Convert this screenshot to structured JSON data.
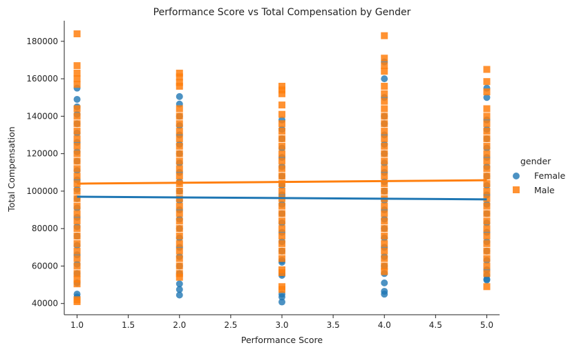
{
  "chart_data": {
    "type": "scatter",
    "title": "Performance Score vs Total Compensation by Gender",
    "xlabel": "Performance Score",
    "ylabel": "Total Compensation",
    "xlim": [
      0.875,
      5.125
    ],
    "ylim": [
      34000,
      191000
    ],
    "x_ticks": [
      1.0,
      1.5,
      2.0,
      2.5,
      3.0,
      3.5,
      4.0,
      4.5,
      5.0
    ],
    "x_tick_labels": [
      "1.0",
      "1.5",
      "2.0",
      "2.5",
      "3.0",
      "3.5",
      "4.0",
      "4.5",
      "5.0"
    ],
    "y_ticks": [
      40000,
      60000,
      80000,
      100000,
      120000,
      140000,
      160000,
      180000
    ],
    "y_tick_labels": [
      "40000",
      "60000",
      "80000",
      "100000",
      "120000",
      "140000",
      "160000",
      "180000"
    ],
    "grid": false,
    "legend": {
      "title": "gender",
      "position": "right",
      "entries": [
        "Female",
        "Male"
      ]
    },
    "series": [
      {
        "name": "Female",
        "color": "#1f77b4",
        "marker": "circle",
        "trend": {
          "x": [
            1.0,
            5.0
          ],
          "y": [
            97000,
            95600
          ]
        },
        "points": [
          {
            "x": 1,
            "y": 155000
          },
          {
            "x": 1,
            "y": 149000
          },
          {
            "x": 1,
            "y": 145000
          },
          {
            "x": 1,
            "y": 141000
          },
          {
            "x": 1,
            "y": 136000
          },
          {
            "x": 1,
            "y": 131000
          },
          {
            "x": 1,
            "y": 126000
          },
          {
            "x": 1,
            "y": 121000
          },
          {
            "x": 1,
            "y": 116000
          },
          {
            "x": 1,
            "y": 111000
          },
          {
            "x": 1,
            "y": 106000
          },
          {
            "x": 1,
            "y": 101000
          },
          {
            "x": 1,
            "y": 96000
          },
          {
            "x": 1,
            "y": 91000
          },
          {
            "x": 1,
            "y": 86000
          },
          {
            "x": 1,
            "y": 81000
          },
          {
            "x": 1,
            "y": 76000
          },
          {
            "x": 1,
            "y": 71000
          },
          {
            "x": 1,
            "y": 66000
          },
          {
            "x": 1,
            "y": 61000
          },
          {
            "x": 1,
            "y": 56000
          },
          {
            "x": 1,
            "y": 51000
          },
          {
            "x": 1,
            "y": 45000
          },
          {
            "x": 1,
            "y": 43500
          },
          {
            "x": 2,
            "y": 150500
          },
          {
            "x": 2,
            "y": 146500
          },
          {
            "x": 2,
            "y": 140000
          },
          {
            "x": 2,
            "y": 135000
          },
          {
            "x": 2,
            "y": 130000
          },
          {
            "x": 2,
            "y": 125000
          },
          {
            "x": 2,
            "y": 120000
          },
          {
            "x": 2,
            "y": 115000
          },
          {
            "x": 2,
            "y": 110000
          },
          {
            "x": 2,
            "y": 105000
          },
          {
            "x": 2,
            "y": 100000
          },
          {
            "x": 2,
            "y": 95000
          },
          {
            "x": 2,
            "y": 90000
          },
          {
            "x": 2,
            "y": 85000
          },
          {
            "x": 2,
            "y": 80000
          },
          {
            "x": 2,
            "y": 75000
          },
          {
            "x": 2,
            "y": 70000
          },
          {
            "x": 2,
            "y": 65000
          },
          {
            "x": 2,
            "y": 60000
          },
          {
            "x": 2,
            "y": 56000
          },
          {
            "x": 2,
            "y": 50500
          },
          {
            "x": 2,
            "y": 47500
          },
          {
            "x": 2,
            "y": 44500
          },
          {
            "x": 3,
            "y": 138000
          },
          {
            "x": 3,
            "y": 133000
          },
          {
            "x": 3,
            "y": 128000
          },
          {
            "x": 3,
            "y": 123000
          },
          {
            "x": 3,
            "y": 118000
          },
          {
            "x": 3,
            "y": 113000
          },
          {
            "x": 3,
            "y": 108000
          },
          {
            "x": 3,
            "y": 103000
          },
          {
            "x": 3,
            "y": 98000
          },
          {
            "x": 3,
            "y": 93000
          },
          {
            "x": 3,
            "y": 88000
          },
          {
            "x": 3,
            "y": 83000
          },
          {
            "x": 3,
            "y": 78000
          },
          {
            "x": 3,
            "y": 73000
          },
          {
            "x": 3,
            "y": 68000
          },
          {
            "x": 3,
            "y": 63000
          },
          {
            "x": 3,
            "y": 62000
          },
          {
            "x": 3,
            "y": 56000
          },
          {
            "x": 3,
            "y": 55000
          },
          {
            "x": 3,
            "y": 45000
          },
          {
            "x": 3,
            "y": 43500
          },
          {
            "x": 3,
            "y": 40800
          },
          {
            "x": 4,
            "y": 169000
          },
          {
            "x": 4,
            "y": 160000
          },
          {
            "x": 4,
            "y": 150000
          },
          {
            "x": 4,
            "y": 140000
          },
          {
            "x": 4,
            "y": 136000
          },
          {
            "x": 4,
            "y": 130000
          },
          {
            "x": 4,
            "y": 125000
          },
          {
            "x": 4,
            "y": 120000
          },
          {
            "x": 4,
            "y": 115000
          },
          {
            "x": 4,
            "y": 110000
          },
          {
            "x": 4,
            "y": 105000
          },
          {
            "x": 4,
            "y": 100000
          },
          {
            "x": 4,
            "y": 95000
          },
          {
            "x": 4,
            "y": 90000
          },
          {
            "x": 4,
            "y": 85000
          },
          {
            "x": 4,
            "y": 80000
          },
          {
            "x": 4,
            "y": 75000
          },
          {
            "x": 4,
            "y": 70000
          },
          {
            "x": 4,
            "y": 65000
          },
          {
            "x": 4,
            "y": 60000
          },
          {
            "x": 4,
            "y": 56000
          },
          {
            "x": 4,
            "y": 51000
          },
          {
            "x": 4,
            "y": 46500
          },
          {
            "x": 4,
            "y": 45000
          },
          {
            "x": 5,
            "y": 155000
          },
          {
            "x": 5,
            "y": 150000
          },
          {
            "x": 5,
            "y": 138000
          },
          {
            "x": 5,
            "y": 133000
          },
          {
            "x": 5,
            "y": 128000
          },
          {
            "x": 5,
            "y": 123000
          },
          {
            "x": 5,
            "y": 118000
          },
          {
            "x": 5,
            "y": 113000
          },
          {
            "x": 5,
            "y": 108000
          },
          {
            "x": 5,
            "y": 103000
          },
          {
            "x": 5,
            "y": 98000
          },
          {
            "x": 5,
            "y": 93000
          },
          {
            "x": 5,
            "y": 88000
          },
          {
            "x": 5,
            "y": 83000
          },
          {
            "x": 5,
            "y": 78000
          },
          {
            "x": 5,
            "y": 73000
          },
          {
            "x": 5,
            "y": 68000
          },
          {
            "x": 5,
            "y": 63000
          },
          {
            "x": 5,
            "y": 58000
          },
          {
            "x": 5,
            "y": 55000
          },
          {
            "x": 5,
            "y": 53000
          },
          {
            "x": 5,
            "y": 52500
          }
        ]
      },
      {
        "name": "Male",
        "color": "#ff7f0e",
        "marker": "square",
        "trend": {
          "x": [
            1.0,
            5.0
          ],
          "y": [
            104000,
            105800
          ]
        },
        "points": [
          {
            "x": 1,
            "y": 184000
          },
          {
            "x": 1,
            "y": 167000
          },
          {
            "x": 1,
            "y": 163000
          },
          {
            "x": 1,
            "y": 160000
          },
          {
            "x": 1,
            "y": 157000
          },
          {
            "x": 1,
            "y": 144000
          },
          {
            "x": 1,
            "y": 140000
          },
          {
            "x": 1,
            "y": 136000
          },
          {
            "x": 1,
            "y": 132000
          },
          {
            "x": 1,
            "y": 128000
          },
          {
            "x": 1,
            "y": 124000
          },
          {
            "x": 1,
            "y": 120000
          },
          {
            "x": 1,
            "y": 116000
          },
          {
            "x": 1,
            "y": 112000
          },
          {
            "x": 1,
            "y": 108000
          },
          {
            "x": 1,
            "y": 104000
          },
          {
            "x": 1,
            "y": 100000
          },
          {
            "x": 1,
            "y": 96000
          },
          {
            "x": 1,
            "y": 92000
          },
          {
            "x": 1,
            "y": 88000
          },
          {
            "x": 1,
            "y": 84000
          },
          {
            "x": 1,
            "y": 80000
          },
          {
            "x": 1,
            "y": 76000
          },
          {
            "x": 1,
            "y": 72000
          },
          {
            "x": 1,
            "y": 68000
          },
          {
            "x": 1,
            "y": 64000
          },
          {
            "x": 1,
            "y": 60000
          },
          {
            "x": 1,
            "y": 56000
          },
          {
            "x": 1,
            "y": 53000
          },
          {
            "x": 1,
            "y": 50500
          },
          {
            "x": 1,
            "y": 42000
          },
          {
            "x": 1,
            "y": 41000
          },
          {
            "x": 2,
            "y": 163000
          },
          {
            "x": 2,
            "y": 161000
          },
          {
            "x": 2,
            "y": 158000
          },
          {
            "x": 2,
            "y": 156000
          },
          {
            "x": 2,
            "y": 144000
          },
          {
            "x": 2,
            "y": 140000
          },
          {
            "x": 2,
            "y": 136000
          },
          {
            "x": 2,
            "y": 132000
          },
          {
            "x": 2,
            "y": 128000
          },
          {
            "x": 2,
            "y": 124000
          },
          {
            "x": 2,
            "y": 120000
          },
          {
            "x": 2,
            "y": 116000
          },
          {
            "x": 2,
            "y": 112000
          },
          {
            "x": 2,
            "y": 108000
          },
          {
            "x": 2,
            "y": 104000
          },
          {
            "x": 2,
            "y": 100000
          },
          {
            "x": 2,
            "y": 96000
          },
          {
            "x": 2,
            "y": 92000
          },
          {
            "x": 2,
            "y": 88000
          },
          {
            "x": 2,
            "y": 84000
          },
          {
            "x": 2,
            "y": 80000
          },
          {
            "x": 2,
            "y": 76000
          },
          {
            "x": 2,
            "y": 72000
          },
          {
            "x": 2,
            "y": 68000
          },
          {
            "x": 2,
            "y": 64000
          },
          {
            "x": 2,
            "y": 60000
          },
          {
            "x": 2,
            "y": 56000
          },
          {
            "x": 2,
            "y": 54000
          },
          {
            "x": 3,
            "y": 156000
          },
          {
            "x": 3,
            "y": 154000
          },
          {
            "x": 3,
            "y": 152000
          },
          {
            "x": 3,
            "y": 146000
          },
          {
            "x": 3,
            "y": 141000
          },
          {
            "x": 3,
            "y": 136000
          },
          {
            "x": 3,
            "y": 132000
          },
          {
            "x": 3,
            "y": 128000
          },
          {
            "x": 3,
            "y": 124000
          },
          {
            "x": 3,
            "y": 120000
          },
          {
            "x": 3,
            "y": 116000
          },
          {
            "x": 3,
            "y": 112000
          },
          {
            "x": 3,
            "y": 108000
          },
          {
            "x": 3,
            "y": 104000
          },
          {
            "x": 3,
            "y": 100000
          },
          {
            "x": 3,
            "y": 96000
          },
          {
            "x": 3,
            "y": 92000
          },
          {
            "x": 3,
            "y": 88000
          },
          {
            "x": 3,
            "y": 84000
          },
          {
            "x": 3,
            "y": 80000
          },
          {
            "x": 3,
            "y": 76000
          },
          {
            "x": 3,
            "y": 72000
          },
          {
            "x": 3,
            "y": 68000
          },
          {
            "x": 3,
            "y": 64000
          },
          {
            "x": 3,
            "y": 58000
          },
          {
            "x": 3,
            "y": 56500
          },
          {
            "x": 3,
            "y": 49000
          },
          {
            "x": 3,
            "y": 47500
          },
          {
            "x": 4,
            "y": 183000
          },
          {
            "x": 4,
            "y": 171000
          },
          {
            "x": 4,
            "y": 167000
          },
          {
            "x": 4,
            "y": 164000
          },
          {
            "x": 4,
            "y": 156000
          },
          {
            "x": 4,
            "y": 152000
          },
          {
            "x": 4,
            "y": 148000
          },
          {
            "x": 4,
            "y": 144000
          },
          {
            "x": 4,
            "y": 140000
          },
          {
            "x": 4,
            "y": 136000
          },
          {
            "x": 4,
            "y": 132000
          },
          {
            "x": 4,
            "y": 128000
          },
          {
            "x": 4,
            "y": 124000
          },
          {
            "x": 4,
            "y": 120000
          },
          {
            "x": 4,
            "y": 116000
          },
          {
            "x": 4,
            "y": 112000
          },
          {
            "x": 4,
            "y": 108000
          },
          {
            "x": 4,
            "y": 104000
          },
          {
            "x": 4,
            "y": 100000
          },
          {
            "x": 4,
            "y": 96000
          },
          {
            "x": 4,
            "y": 92000
          },
          {
            "x": 4,
            "y": 88000
          },
          {
            "x": 4,
            "y": 84000
          },
          {
            "x": 4,
            "y": 80000
          },
          {
            "x": 4,
            "y": 76000
          },
          {
            "x": 4,
            "y": 72000
          },
          {
            "x": 4,
            "y": 68000
          },
          {
            "x": 4,
            "y": 64000
          },
          {
            "x": 4,
            "y": 60000
          },
          {
            "x": 4,
            "y": 57000
          },
          {
            "x": 5,
            "y": 165000
          },
          {
            "x": 5,
            "y": 158500
          },
          {
            "x": 5,
            "y": 153000
          },
          {
            "x": 5,
            "y": 144000
          },
          {
            "x": 5,
            "y": 140000
          },
          {
            "x": 5,
            "y": 136000
          },
          {
            "x": 5,
            "y": 132000
          },
          {
            "x": 5,
            "y": 128000
          },
          {
            "x": 5,
            "y": 124000
          },
          {
            "x": 5,
            "y": 120000
          },
          {
            "x": 5,
            "y": 116000
          },
          {
            "x": 5,
            "y": 112000
          },
          {
            "x": 5,
            "y": 108000
          },
          {
            "x": 5,
            "y": 104000
          },
          {
            "x": 5,
            "y": 100000
          },
          {
            "x": 5,
            "y": 96000
          },
          {
            "x": 5,
            "y": 92000
          },
          {
            "x": 5,
            "y": 88000
          },
          {
            "x": 5,
            "y": 84000
          },
          {
            "x": 5,
            "y": 80000
          },
          {
            "x": 5,
            "y": 76000
          },
          {
            "x": 5,
            "y": 72000
          },
          {
            "x": 5,
            "y": 68000
          },
          {
            "x": 5,
            "y": 64000
          },
          {
            "x": 5,
            "y": 60000
          },
          {
            "x": 5,
            "y": 56000
          },
          {
            "x": 5,
            "y": 49000
          }
        ]
      }
    ]
  }
}
